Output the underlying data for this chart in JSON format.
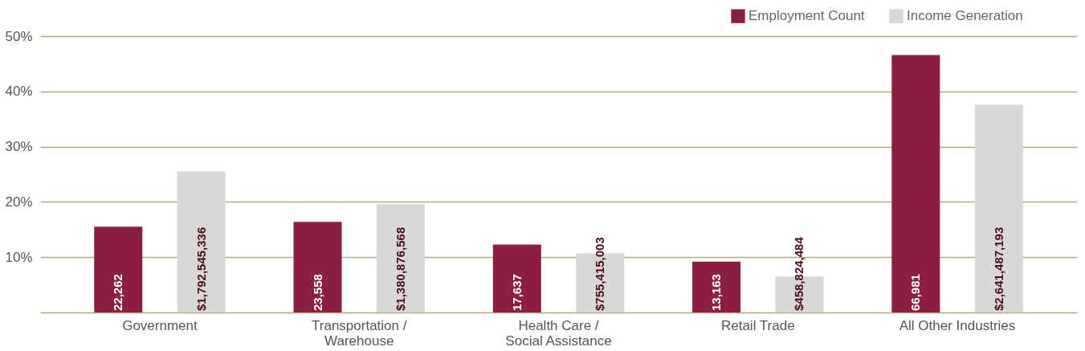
{
  "chart_data": {
    "type": "bar",
    "categories": [
      "Government",
      "Transportation /\nWarehouse",
      "Health Care /\nSocial Assistance",
      "Retail Trade",
      "All Other Industries"
    ],
    "series": [
      {
        "name": "Employment Count",
        "color": "#8b1f41",
        "values": [
          15.5,
          16.4,
          12.3,
          9.2,
          46.6
        ]
      },
      {
        "name": "Income Generation",
        "color": "#d9d8d6",
        "values": [
          25.5,
          19.6,
          10.7,
          6.5,
          37.6
        ]
      }
    ],
    "annotations": [
      "22,262",
      "23,558",
      "17,637",
      "13,163",
      "66,981",
      "$1,792,545,336",
      "$1,380,876,568",
      "$755,415,003",
      "$458,824,484",
      "$2,641,487,193"
    ],
    "ylim": [
      0,
      50
    ],
    "yticks": [
      {
        "value": 0,
        "label": null
      },
      {
        "value": 10,
        "label": "10%"
      },
      {
        "value": 20,
        "label": "20%"
      },
      {
        "value": 30,
        "label": "30%"
      },
      {
        "value": 40,
        "label": "40%"
      },
      {
        "value": 50,
        "label": "50%"
      }
    ],
    "grid": "y",
    "legend": "top right"
  }
}
